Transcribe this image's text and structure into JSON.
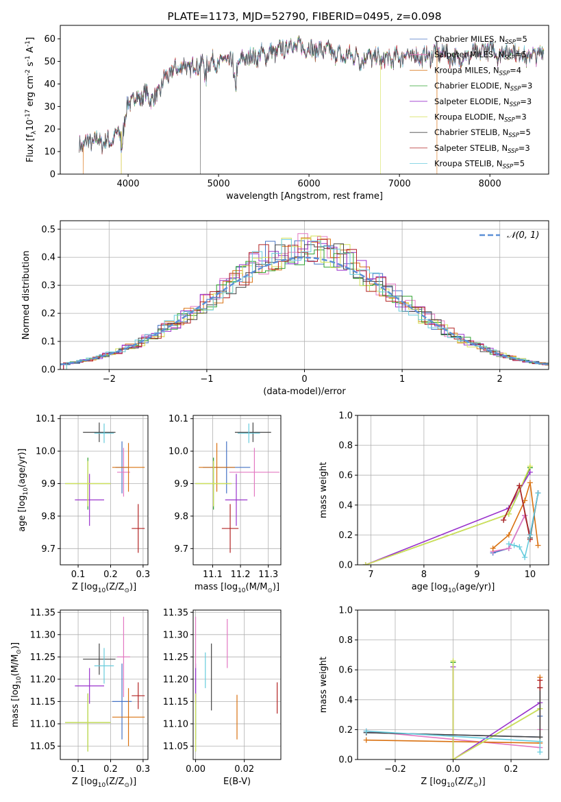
{
  "colors": [
    "#4472c4",
    "#e377c2",
    "#d9700f",
    "#2ca02c",
    "#9932cc",
    "#d4e157",
    "#444444",
    "#b22222",
    "#66ccdd"
  ],
  "chart_data": [
    {
      "id": "spectrum",
      "type": "line",
      "title": "PLATE=1173, MJD=52790, FIBERID=0495, z=0.098",
      "xlabel": "wavelength [Angstrom, rest frame]",
      "ylabel": "Flux [f$_\\lambda$10$^{-17}$ erg cm$^{-2}$ s$^{-1}$ A$^{-1}$]",
      "xlim": [
        3250,
        8650
      ],
      "ylim": [
        0,
        66
      ],
      "xticks": [
        4000,
        5000,
        6000,
        7000,
        8000
      ],
      "yticks": [
        0,
        10,
        20,
        30,
        40,
        50,
        60
      ],
      "legend_position": "upper right",
      "legend": [
        {
          "text": "Chabrier MILES, N",
          "sub": "SSP",
          "tail": "=5"
        },
        {
          "text": "Salpeter MILES, N",
          "sub": "SSP",
          "tail": "=5"
        },
        {
          "text": "Kroupa MILES, N",
          "sub": "SSP",
          "tail": "=4"
        },
        {
          "text": "Chabrier ELODIE, N",
          "sub": "SSP",
          "tail": "=3"
        },
        {
          "text": "Salpeter ELODIE, N",
          "sub": "SSP",
          "tail": "=3"
        },
        {
          "text": "Kroupa ELODIE, N",
          "sub": "SSP",
          "tail": "=3"
        },
        {
          "text": "Chabrier STELIB, N",
          "sub": "SSP",
          "tail": "=5"
        },
        {
          "text": "Salpeter STELIB, N",
          "sub": "SSP",
          "tail": "=3"
        },
        {
          "text": "Kroupa STELIB, N",
          "sub": "SSP",
          "tail": "=5"
        }
      ],
      "envelope": {
        "x": [
          3450,
          3550,
          3650,
          3750,
          3850,
          3950,
          4000,
          4100,
          4200,
          4300,
          4400,
          4500,
          4600,
          4700,
          4800,
          4900,
          5000,
          5100,
          5200,
          5300,
          5400,
          5500,
          5600,
          5700,
          5800,
          5900,
          6000,
          6100,
          6200,
          6300,
          6400,
          6500,
          6600,
          6700,
          6800,
          6900,
          7000,
          7100,
          7200,
          7300,
          7400,
          7500,
          7600,
          7700,
          7800,
          7900,
          8000,
          8100,
          8200,
          8300,
          8400,
          8500,
          8600
        ],
        "y": [
          13,
          14,
          15,
          14,
          16,
          20,
          32,
          34,
          35,
          33,
          42,
          46,
          48,
          47,
          49,
          50,
          49,
          51,
          48,
          52,
          52,
          53,
          54,
          55,
          58,
          56,
          56,
          55,
          55,
          53,
          52,
          53,
          52,
          52,
          51,
          51,
          52,
          53,
          52,
          52,
          54,
          54,
          51,
          52,
          53,
          54,
          56,
          53,
          55,
          54,
          52,
          53,
          54
        ]
      },
      "drops": [
        {
          "x": 3505,
          "series": 2
        },
        {
          "x": 3925,
          "series": 5
        },
        {
          "x": 3925,
          "series": 2
        },
        {
          "x": 4800,
          "series": 6
        },
        {
          "x": 6790,
          "series": 5
        },
        {
          "x": 7415,
          "series": 2
        }
      ]
    },
    {
      "id": "residuals",
      "type": "histogram",
      "xlabel": "(data-model)/error",
      "ylabel": "Normed distribution",
      "xlim": [
        -2.5,
        2.5
      ],
      "ylim": [
        0,
        0.53
      ],
      "xticks": [
        -2,
        -1,
        0,
        1,
        2
      ],
      "yticks": [
        0.0,
        0.1,
        0.2,
        0.3,
        0.4,
        0.5
      ],
      "grid": true,
      "bin_width": 0.1,
      "legend": [
        {
          "text": "𝒩(0, 1)",
          "style": "dashed"
        }
      ],
      "normal_color": "#5b8fd6"
    },
    {
      "id": "age-vs-Z",
      "type": "errorbar",
      "xlabel": "Z [log$_{10}$(Z/Z$_\\odot$)]",
      "ylabel": "age  [log$_{10}$(age/yr)]",
      "xlim": [
        0.045,
        0.315
      ],
      "ylim": [
        9.65,
        10.11
      ],
      "xticks": [
        0.1,
        0.2,
        0.3
      ],
      "yticks": [
        9.7,
        9.8,
        9.9,
        10.0,
        10.1
      ],
      "grid": true,
      "points": [
        {
          "x": 0.235,
          "xerr": 0.02,
          "y": 9.95,
          "yerr": 0.08,
          "c": 0
        },
        {
          "x": 0.24,
          "xerr": 0.02,
          "y": 9.935,
          "yerr": 0.075,
          "c": 1
        },
        {
          "x": 0.255,
          "xerr": 0.05,
          "y": 9.95,
          "yerr": 0.075,
          "c": 2
        },
        {
          "x": 0.13,
          "xerr": 0.07,
          "y": 9.9,
          "yerr": 0.08,
          "c": 3
        },
        {
          "x": 0.135,
          "xerr": 0.045,
          "y": 9.85,
          "yerr": 0.08,
          "c": 4
        },
        {
          "x": 0.13,
          "xerr": 0.07,
          "y": 9.9,
          "yerr": 0.07,
          "c": 5
        },
        {
          "x": 0.165,
          "xerr": 0.05,
          "y": 10.058,
          "yerr": 0.03,
          "c": 6
        },
        {
          "x": 0.285,
          "xerr": 0.02,
          "y": 9.762,
          "yerr": 0.075,
          "c": 7
        },
        {
          "x": 0.18,
          "xerr": 0.03,
          "y": 10.055,
          "yerr": 0.03,
          "c": 8
        }
      ]
    },
    {
      "id": "age-vs-mass",
      "type": "errorbar",
      "xlabel": "mass [log$_{10}$(M/M$_\\odot$)]",
      "ylabel": "",
      "xlim": [
        11.03,
        11.345
      ],
      "ylim": [
        9.65,
        10.11
      ],
      "xticks": [
        11.1,
        11.2,
        11.3
      ],
      "yticks": [
        9.7,
        9.8,
        9.9,
        10.0,
        10.1
      ],
      "grid": true,
      "points": [
        {
          "x": 11.15,
          "xerr": 0.085,
          "y": 9.95,
          "yerr": 0.08,
          "c": 0
        },
        {
          "x": 11.25,
          "xerr": 0.09,
          "y": 9.935,
          "yerr": 0.075,
          "c": 1
        },
        {
          "x": 11.115,
          "xerr": 0.065,
          "y": 9.95,
          "yerr": 0.075,
          "c": 2
        },
        {
          "x": 11.103,
          "xerr": 0.065,
          "y": 9.9,
          "yerr": 0.08,
          "c": 3
        },
        {
          "x": 11.185,
          "xerr": 0.04,
          "y": 9.85,
          "yerr": 0.08,
          "c": 4
        },
        {
          "x": 11.103,
          "xerr": 0.065,
          "y": 9.9,
          "yerr": 0.07,
          "c": 5
        },
        {
          "x": 11.245,
          "xerr": 0.065,
          "y": 10.058,
          "yerr": 0.03,
          "c": 6
        },
        {
          "x": 11.163,
          "xerr": 0.03,
          "y": 9.762,
          "yerr": 0.075,
          "c": 7
        },
        {
          "x": 11.23,
          "xerr": 0.04,
          "y": 10.055,
          "yerr": 0.03,
          "c": 8
        }
      ]
    },
    {
      "id": "weight-vs-age",
      "type": "line",
      "xlabel": "age  [log$_{10}$(age/yr)]",
      "ylabel": "mass weight",
      "xlim": [
        6.75,
        10.35
      ],
      "ylim": [
        0,
        1
      ],
      "xticks": [
        7,
        8,
        9,
        10
      ],
      "yticks": [
        0.0,
        0.2,
        0.4,
        0.6,
        0.8,
        1.0
      ],
      "grid": true,
      "series": [
        {
          "c": 0,
          "x": [
            9.3,
            9.6,
            9.9,
            10.0,
            10.15
          ],
          "y": [
            0.08,
            0.11,
            0.33,
            0.2,
            0.48
          ]
        },
        {
          "c": 1,
          "x": [
            9.3,
            9.6,
            9.9,
            10.0,
            10.15
          ],
          "y": [
            0.09,
            0.11,
            0.33,
            0.2,
            0.48
          ]
        },
        {
          "c": 2,
          "x": [
            9.3,
            9.6,
            9.9,
            10.0,
            10.15
          ],
          "y": [
            0.11,
            0.2,
            0.43,
            0.55,
            0.13
          ]
        },
        {
          "c": 3,
          "x": [
            6.9,
            9.6,
            10.0
          ],
          "y": [
            0.0,
            0.34,
            0.65
          ]
        },
        {
          "c": 4,
          "x": [
            6.9,
            9.6,
            10.0
          ],
          "y": [
            0.0,
            0.38,
            0.62
          ]
        },
        {
          "c": 5,
          "x": [
            6.9,
            9.6,
            10.0
          ],
          "y": [
            0.0,
            0.34,
            0.66
          ]
        },
        {
          "c": 6,
          "x": [
            9.5,
            9.8,
            10.0,
            10.15
          ],
          "y": [
            0.3,
            0.53,
            0.18,
            0.48
          ]
        },
        {
          "c": 7,
          "x": [
            9.5,
            9.8,
            10.0
          ],
          "y": [
            0.3,
            0.53,
            0.17
          ]
        },
        {
          "c": 8,
          "x": [
            9.6,
            9.7,
            9.8,
            9.9,
            10.0,
            10.15
          ],
          "y": [
            0.14,
            0.13,
            0.12,
            0.05,
            0.2,
            0.48
          ]
        }
      ]
    },
    {
      "id": "mass-vs-Z",
      "type": "errorbar",
      "xlabel": "Z [log$_{10}$(Z/Z$_\\odot$)]",
      "ylabel": "mass [log$_{10}$(M/M$_\\odot$)]",
      "xlim": [
        0.045,
        0.315
      ],
      "ylim": [
        11.02,
        11.355
      ],
      "xticks": [
        0.1,
        0.2,
        0.3
      ],
      "yticks": [
        11.05,
        11.1,
        11.15,
        11.2,
        11.25,
        11.3,
        11.35
      ],
      "grid": true,
      "points": [
        {
          "x": 0.235,
          "xerr": 0.03,
          "y": 11.15,
          "yerr": 0.085,
          "c": 0
        },
        {
          "x": 0.24,
          "xerr": 0.02,
          "y": 11.25,
          "yerr": 0.09,
          "c": 1
        },
        {
          "x": 0.255,
          "xerr": 0.05,
          "y": 11.115,
          "yerr": 0.065,
          "c": 2
        },
        {
          "x": 0.13,
          "xerr": 0.07,
          "y": 11.103,
          "yerr": 0.065,
          "c": 3
        },
        {
          "x": 0.135,
          "xerr": 0.045,
          "y": 11.185,
          "yerr": 0.04,
          "c": 4
        },
        {
          "x": 0.13,
          "xerr": 0.07,
          "y": 11.103,
          "yerr": 0.065,
          "c": 5
        },
        {
          "x": 0.165,
          "xerr": 0.05,
          "y": 11.245,
          "yerr": 0.035,
          "c": 6
        },
        {
          "x": 0.285,
          "xerr": 0.02,
          "y": 11.163,
          "yerr": 0.03,
          "c": 7
        },
        {
          "x": 0.18,
          "xerr": 0.03,
          "y": 11.23,
          "yerr": 0.04,
          "c": 8
        }
      ]
    },
    {
      "id": "mass-vs-EBV",
      "type": "errorbar",
      "xlabel": "E(B-V)",
      "ylabel": "",
      "xlim": [
        -0.001,
        0.035
      ],
      "ylim": [
        11.02,
        11.355
      ],
      "xticks": [
        0.0,
        0.02
      ],
      "yticks": [
        11.05,
        11.1,
        11.15,
        11.2,
        11.25,
        11.3,
        11.35
      ],
      "grid": true,
      "points": [
        {
          "x": 0.0,
          "y": 11.15,
          "yerr": 0.085,
          "c": 0
        },
        {
          "x": 0.0,
          "y": 11.25,
          "yerr": 0.09,
          "c": 1
        },
        {
          "x": 0.017,
          "y": 11.115,
          "yerr": 0.05,
          "c": 2
        },
        {
          "x": 0.0,
          "y": 11.103,
          "yerr": 0.065,
          "c": 3
        },
        {
          "x": 0.0,
          "y": 11.185,
          "yerr": 0.04,
          "c": 4
        },
        {
          "x": 0.0,
          "y": 11.103,
          "yerr": 0.065,
          "c": 5
        },
        {
          "x": 0.0065,
          "y": 11.205,
          "yerr": 0.075,
          "c": 6
        },
        {
          "x": 0.0335,
          "y": 11.158,
          "yerr": 0.035,
          "c": 7
        },
        {
          "x": 0.004,
          "y": 11.22,
          "yerr": 0.04,
          "c": 8
        },
        {
          "x": 0.013,
          "y": 11.28,
          "yerr": 0.055,
          "c": 1
        }
      ]
    },
    {
      "id": "weight-vs-Z",
      "type": "line",
      "xlabel": "Z [log$_{10}$(Z/Z$_\\odot$)]",
      "ylabel": "mass weight",
      "xlim": [
        -0.33,
        0.33
      ],
      "ylim": [
        0,
        1
      ],
      "xticks": [
        -0.2,
        0.0,
        0.2
      ],
      "yticks": [
        0.0,
        0.2,
        0.4,
        0.6,
        0.8,
        1.0
      ],
      "grid": true,
      "series": [
        {
          "c": 0,
          "x": [
            -0.3,
            0.3,
            0.3,
            0.3
          ],
          "y": [
            0.18,
            0.15,
            0.48,
            0.29
          ]
        },
        {
          "c": 1,
          "x": [
            -0.3,
            0.3,
            0.3,
            0.3
          ],
          "y": [
            0.19,
            0.08,
            0.48,
            0.2
          ]
        },
        {
          "c": 2,
          "x": [
            -0.3,
            0.3,
            0.3
          ],
          "y": [
            0.13,
            0.11,
            0.55
          ]
        },
        {
          "c": 3,
          "x": [
            0.0,
            0.0,
            0.3
          ],
          "y": [
            0.65,
            0.0,
            0.34
          ]
        },
        {
          "c": 4,
          "x": [
            0.0,
            0.0,
            0.3
          ],
          "y": [
            0.62,
            0.0,
            0.38
          ]
        },
        {
          "c": 5,
          "x": [
            0.0,
            0.0,
            0.3
          ],
          "y": [
            0.66,
            0.0,
            0.34
          ]
        },
        {
          "c": 6,
          "x": [
            -0.3,
            0.3,
            0.3
          ],
          "y": [
            0.18,
            0.15,
            0.48
          ]
        },
        {
          "c": 7,
          "x": [
            0.3,
            0.3
          ],
          "y": [
            0.53,
            0.48
          ]
        },
        {
          "c": 8,
          "x": [
            -0.3,
            0.3,
            0.3
          ],
          "y": [
            0.19,
            0.12,
            0.05
          ]
        }
      ]
    }
  ]
}
